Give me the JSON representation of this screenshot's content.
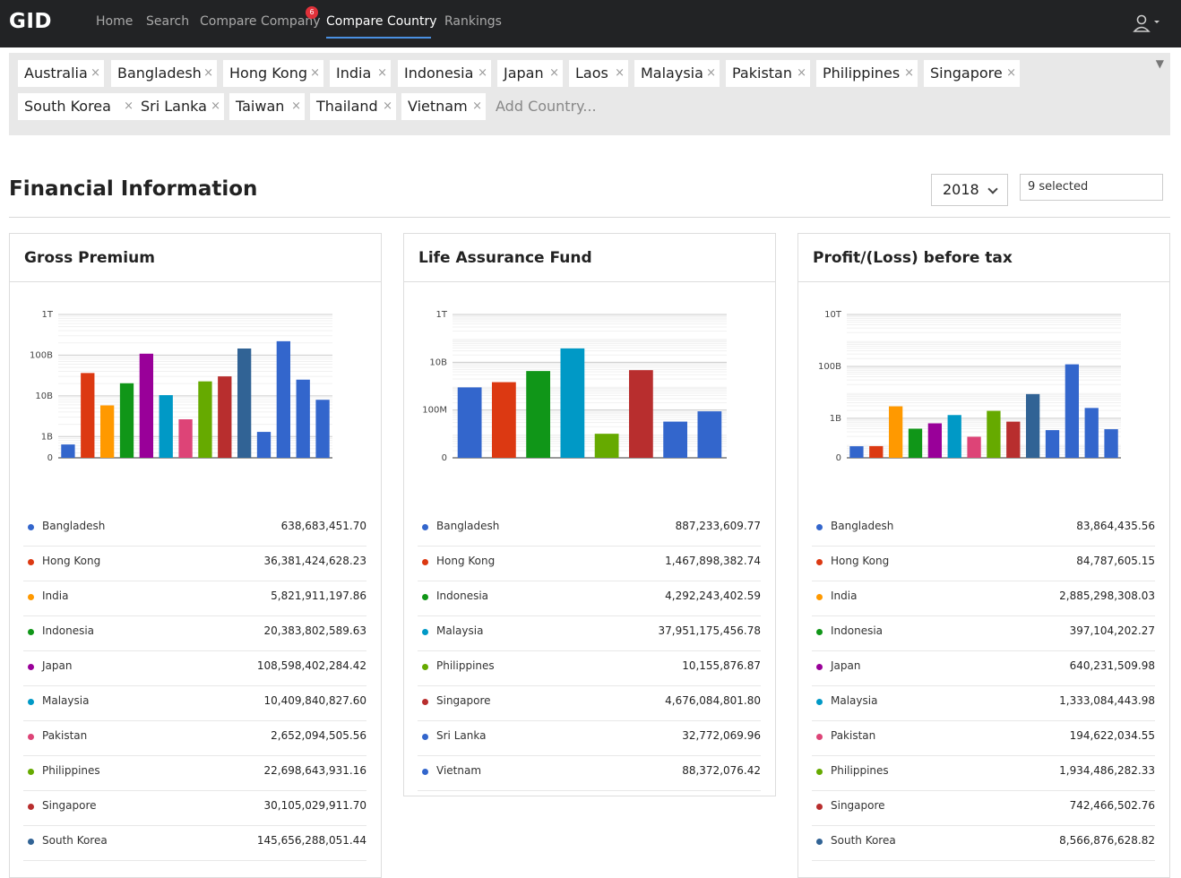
{
  "nav": {
    "logo": "GID",
    "links": [
      "Home",
      "Search",
      "Compare Company",
      "Compare Country",
      "Rankings"
    ],
    "active": "Compare Country",
    "compare_company_badge": "6"
  },
  "selector": {
    "chips": [
      "Australia",
      "Bangladesh",
      "Hong Kong",
      "India",
      "Indonesia",
      "Japan",
      "Laos",
      "Malaysia",
      "Pakistan",
      "Philippines",
      "Singapore",
      "South Korea",
      "Sri Lanka",
      "Taiwan",
      "Thailand",
      "Vietnam"
    ],
    "placeholder": "Add Country...",
    "remove_glyph": "×",
    "caret": "▼"
  },
  "section": {
    "title": "Financial Information",
    "year": "2018",
    "multi": "9 selected"
  },
  "colors": {
    "Bangladesh": "#3366cc",
    "Hong Kong": "#dc3912",
    "India": "#ff9900",
    "Indonesia": "#109618",
    "Japan": "#990099",
    "Malaysia": "#0099c6",
    "Pakistan": "#dd4477",
    "Philippines": "#66aa00",
    "Singapore": "#b82e2e",
    "South Korea": "#316395",
    "Sri Lanka": "#3366cc",
    "Taiwan": "#3366cc",
    "Thailand": "#3366cc",
    "Vietnam": "#3366cc"
  },
  "cards": [
    {
      "title": "Gross Premium",
      "rows": [
        {
          "country": "Bangladesh",
          "value": "638,683,451.70"
        },
        {
          "country": "Hong Kong",
          "value": "36,381,424,628.23"
        },
        {
          "country": "India",
          "value": "5,821,911,197.86"
        },
        {
          "country": "Indonesia",
          "value": "20,383,802,589.63"
        },
        {
          "country": "Japan",
          "value": "108,598,402,284.42"
        },
        {
          "country": "Malaysia",
          "value": "10,409,840,827.60"
        },
        {
          "country": "Pakistan",
          "value": "2,652,094,505.56"
        },
        {
          "country": "Philippines",
          "value": "22,698,643,931.16"
        },
        {
          "country": "Singapore",
          "value": "30,105,029,911.70"
        },
        {
          "country": "South Korea",
          "value": "145,656,288,051.44"
        }
      ]
    },
    {
      "title": "Life Assurance Fund",
      "rows": [
        {
          "country": "Bangladesh",
          "value": "887,233,609.77"
        },
        {
          "country": "Hong Kong",
          "value": "1,467,898,382.74"
        },
        {
          "country": "Indonesia",
          "value": "4,292,243,402.59"
        },
        {
          "country": "Malaysia",
          "value": "37,951,175,456.78"
        },
        {
          "country": "Philippines",
          "value": "10,155,876.87"
        },
        {
          "country": "Singapore",
          "value": "4,676,084,801.80"
        },
        {
          "country": "Sri Lanka",
          "value": "32,772,069.96"
        },
        {
          "country": "Vietnam",
          "value": "88,372,076.42"
        }
      ]
    },
    {
      "title": "Profit/(Loss) before tax",
      "rows": [
        {
          "country": "Bangladesh",
          "value": "83,864,435.56"
        },
        {
          "country": "Hong Kong",
          "value": "84,787,605.15"
        },
        {
          "country": "India",
          "value": "2,885,298,308.03"
        },
        {
          "country": "Indonesia",
          "value": "397,104,202.27"
        },
        {
          "country": "Japan",
          "value": "640,231,509.98"
        },
        {
          "country": "Malaysia",
          "value": "1,333,084,443.98"
        },
        {
          "country": "Pakistan",
          "value": "194,622,034.55"
        },
        {
          "country": "Philippines",
          "value": "1,934,486,282.33"
        },
        {
          "country": "Singapore",
          "value": "742,466,502.76"
        },
        {
          "country": "South Korea",
          "value": "8,566,876,628.82"
        }
      ]
    }
  ],
  "chart_data": [
    {
      "type": "bar",
      "title": "Gross Premium",
      "y_scale": "log",
      "yticks": [
        "0",
        "1B",
        "10B",
        "100B",
        "1T"
      ],
      "ylim": [
        300000000,
        1000000000000
      ],
      "categories": [
        "Bangladesh",
        "Hong Kong",
        "India",
        "Indonesia",
        "Japan",
        "Malaysia",
        "Pakistan",
        "Philippines",
        "Singapore",
        "South Korea",
        "Sri Lanka",
        "Taiwan",
        "Thailand",
        "Vietnam"
      ],
      "values": [
        638683451.7,
        36381424628.23,
        5821911197.86,
        20383802589.63,
        108598402284.42,
        10409840827.6,
        2652094505.56,
        22698643931.16,
        30105029911.7,
        145656288051.44,
        1300000000,
        220000000000,
        25000000000,
        8000000000
      ],
      "colors": [
        "#3366cc",
        "#dc3912",
        "#ff9900",
        "#109618",
        "#990099",
        "#0099c6",
        "#dd4477",
        "#66aa00",
        "#b82e2e",
        "#316395",
        "#3366cc",
        "#3366cc",
        "#3366cc",
        "#3366cc"
      ]
    },
    {
      "type": "bar",
      "title": "Life Assurance Fund",
      "y_scale": "log",
      "yticks": [
        "0",
        "100M",
        "10B",
        "1T"
      ],
      "ylim": [
        1000000,
        1000000000000
      ],
      "categories": [
        "Bangladesh",
        "Hong Kong",
        "Indonesia",
        "Malaysia",
        "Philippines",
        "Singapore",
        "Sri Lanka",
        "Vietnam"
      ],
      "values": [
        887233609.77,
        1467898382.74,
        4292243402.59,
        37951175456.78,
        10155876.87,
        4676084801.8,
        32772069.96,
        88372076.42
      ],
      "colors": [
        "#3366cc",
        "#dc3912",
        "#109618",
        "#0099c6",
        "#66aa00",
        "#b82e2e",
        "#3366cc",
        "#3366cc"
      ]
    },
    {
      "type": "bar",
      "title": "Profit/(Loss) before tax",
      "y_scale": "log",
      "yticks": [
        "0",
        "1B",
        "100B",
        "10T"
      ],
      "ylim": [
        30000000,
        10000000000000
      ],
      "categories": [
        "Bangladesh",
        "Hong Kong",
        "India",
        "Indonesia",
        "Japan",
        "Malaysia",
        "Pakistan",
        "Philippines",
        "Singapore",
        "South Korea",
        "Sri Lanka",
        "Taiwan",
        "Thailand",
        "Vietnam"
      ],
      "values": [
        83864435.56,
        84787605.15,
        2885298308.03,
        397104202.27,
        640231509.98,
        1333084443.98,
        194622034.55,
        1934486282.33,
        742466502.76,
        8566876628.82,
        350000000,
        120000000000,
        2500000000,
        380000000
      ],
      "colors": [
        "#3366cc",
        "#dc3912",
        "#ff9900",
        "#109618",
        "#990099",
        "#0099c6",
        "#dd4477",
        "#66aa00",
        "#b82e2e",
        "#316395",
        "#3366cc",
        "#3366cc",
        "#3366cc",
        "#3366cc"
      ]
    }
  ]
}
